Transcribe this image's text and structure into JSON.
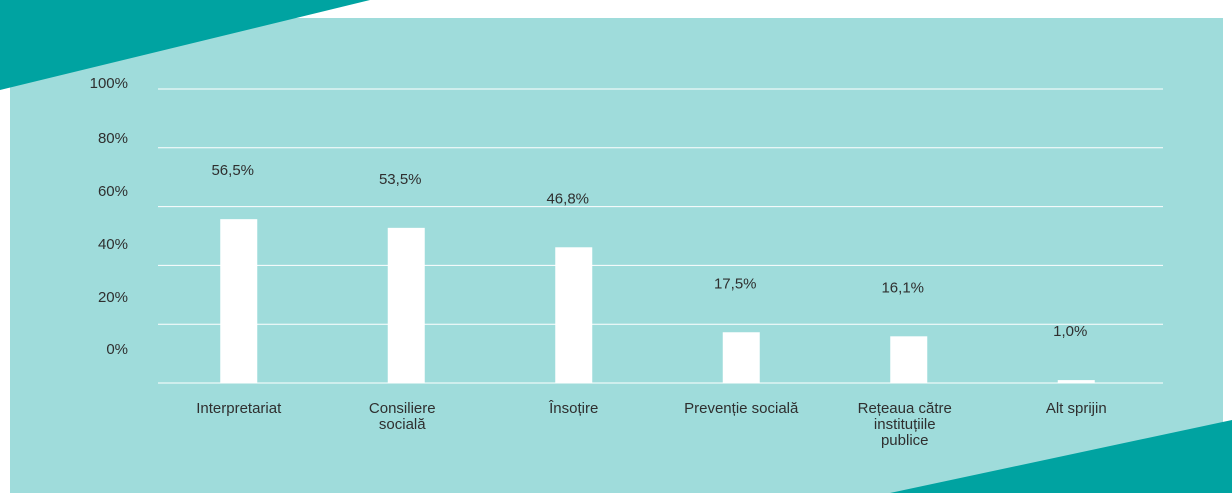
{
  "colors": {
    "panel_background": "#9fdcdb",
    "accent_teal": "#00a3a1",
    "bar_fill": "#ffffff",
    "gridline": "#ffffff",
    "text": "#2f2f2f"
  },
  "chart_data": {
    "type": "bar",
    "categories": [
      [
        "Interpretariat"
      ],
      [
        "Consiliere",
        "socială"
      ],
      [
        "Însoțire"
      ],
      [
        "Prevenție socială"
      ],
      [
        "Rețeaua către",
        "instituțiile",
        "publice"
      ],
      [
        "Alt sprijin"
      ]
    ],
    "values": [
      56.5,
      53.5,
      46.8,
      17.5,
      16.1,
      1.0
    ],
    "data_labels": [
      "56,5%",
      "53,5%",
      "46,8%",
      "17,5%",
      "16,1%",
      "1,0%"
    ],
    "ytick_labels": [
      "100%",
      "80%",
      "60%",
      "40%",
      "20%",
      "0%"
    ],
    "ylim": [
      0,
      140
    ],
    "grid": true,
    "legend": "none"
  }
}
